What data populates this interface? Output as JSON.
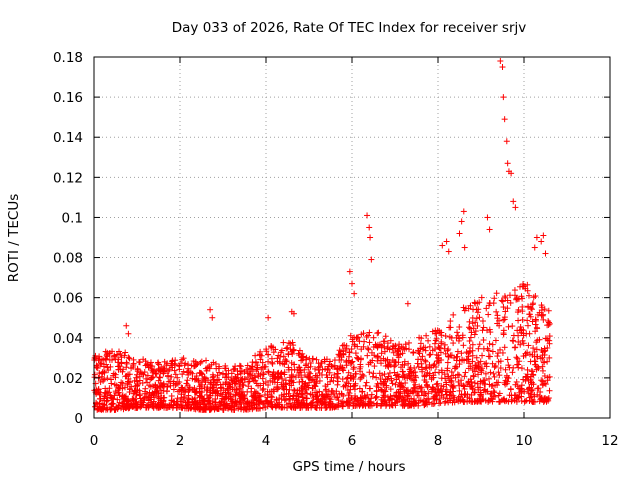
{
  "chart_data": {
    "type": "scatter",
    "title": "Day 033 of 2026, Rate Of TEC Index for receiver srjv",
    "xlabel": "GPS time / hours",
    "ylabel": "ROTI / TECUs",
    "xlim": [
      0,
      12
    ],
    "ylim": [
      0,
      0.18
    ],
    "x_ticks": [
      0,
      2,
      4,
      6,
      8,
      10,
      12
    ],
    "x_tick_labels": [
      "0",
      "2",
      "4",
      "6",
      "8",
      "10",
      "12"
    ],
    "y_ticks": [
      0,
      0.02,
      0.04,
      0.06,
      0.08,
      0.1,
      0.12,
      0.14,
      0.16,
      0.18
    ],
    "y_tick_labels": [
      "0",
      "0.02",
      "0.04",
      "0.06",
      "0.08",
      "0.1",
      "0.12",
      "0.14",
      "0.16",
      "0.18"
    ],
    "grid": true,
    "marker": "plus",
    "color": "#ff0000",
    "data_range_hours": [
      0,
      10.6
    ],
    "baseline_envelope": {
      "x": [
        0,
        0.5,
        1,
        1.5,
        2,
        2.5,
        3,
        3.5,
        4,
        4.5,
        5,
        5.5,
        6,
        6.5,
        7,
        7.5,
        8,
        8.5,
        9,
        9.5,
        10,
        10.5
      ],
      "low": [
        0.004,
        0.004,
        0.005,
        0.005,
        0.005,
        0.004,
        0.004,
        0.004,
        0.005,
        0.005,
        0.005,
        0.005,
        0.006,
        0.006,
        0.006,
        0.006,
        0.007,
        0.008,
        0.008,
        0.008,
        0.008,
        0.008
      ],
      "high": [
        0.032,
        0.035,
        0.03,
        0.028,
        0.03,
        0.03,
        0.027,
        0.026,
        0.038,
        0.04,
        0.03,
        0.03,
        0.042,
        0.045,
        0.038,
        0.04,
        0.045,
        0.055,
        0.06,
        0.065,
        0.07,
        0.055
      ]
    },
    "highlight_points": {
      "x": [
        0.75,
        0.8,
        2.7,
        2.75,
        4.05,
        4.6,
        4.65,
        5.95,
        6.0,
        6.05,
        6.35,
        6.4,
        6.42,
        6.45,
        7.3,
        8.1,
        8.2,
        8.25,
        8.5,
        8.55,
        8.6,
        8.62,
        9.15,
        9.2,
        9.45,
        9.5,
        9.52,
        9.55,
        9.6,
        9.62,
        9.65,
        9.7,
        9.75,
        9.8,
        10.25,
        10.3,
        10.4,
        10.45,
        10.5
      ],
      "y": [
        0.046,
        0.042,
        0.054,
        0.05,
        0.05,
        0.053,
        0.052,
        0.073,
        0.067,
        0.062,
        0.101,
        0.095,
        0.09,
        0.079,
        0.057,
        0.086,
        0.088,
        0.083,
        0.092,
        0.098,
        0.103,
        0.085,
        0.1,
        0.094,
        0.178,
        0.175,
        0.16,
        0.149,
        0.138,
        0.127,
        0.123,
        0.122,
        0.108,
        0.105,
        0.085,
        0.09,
        0.088,
        0.091,
        0.082
      ]
    }
  }
}
